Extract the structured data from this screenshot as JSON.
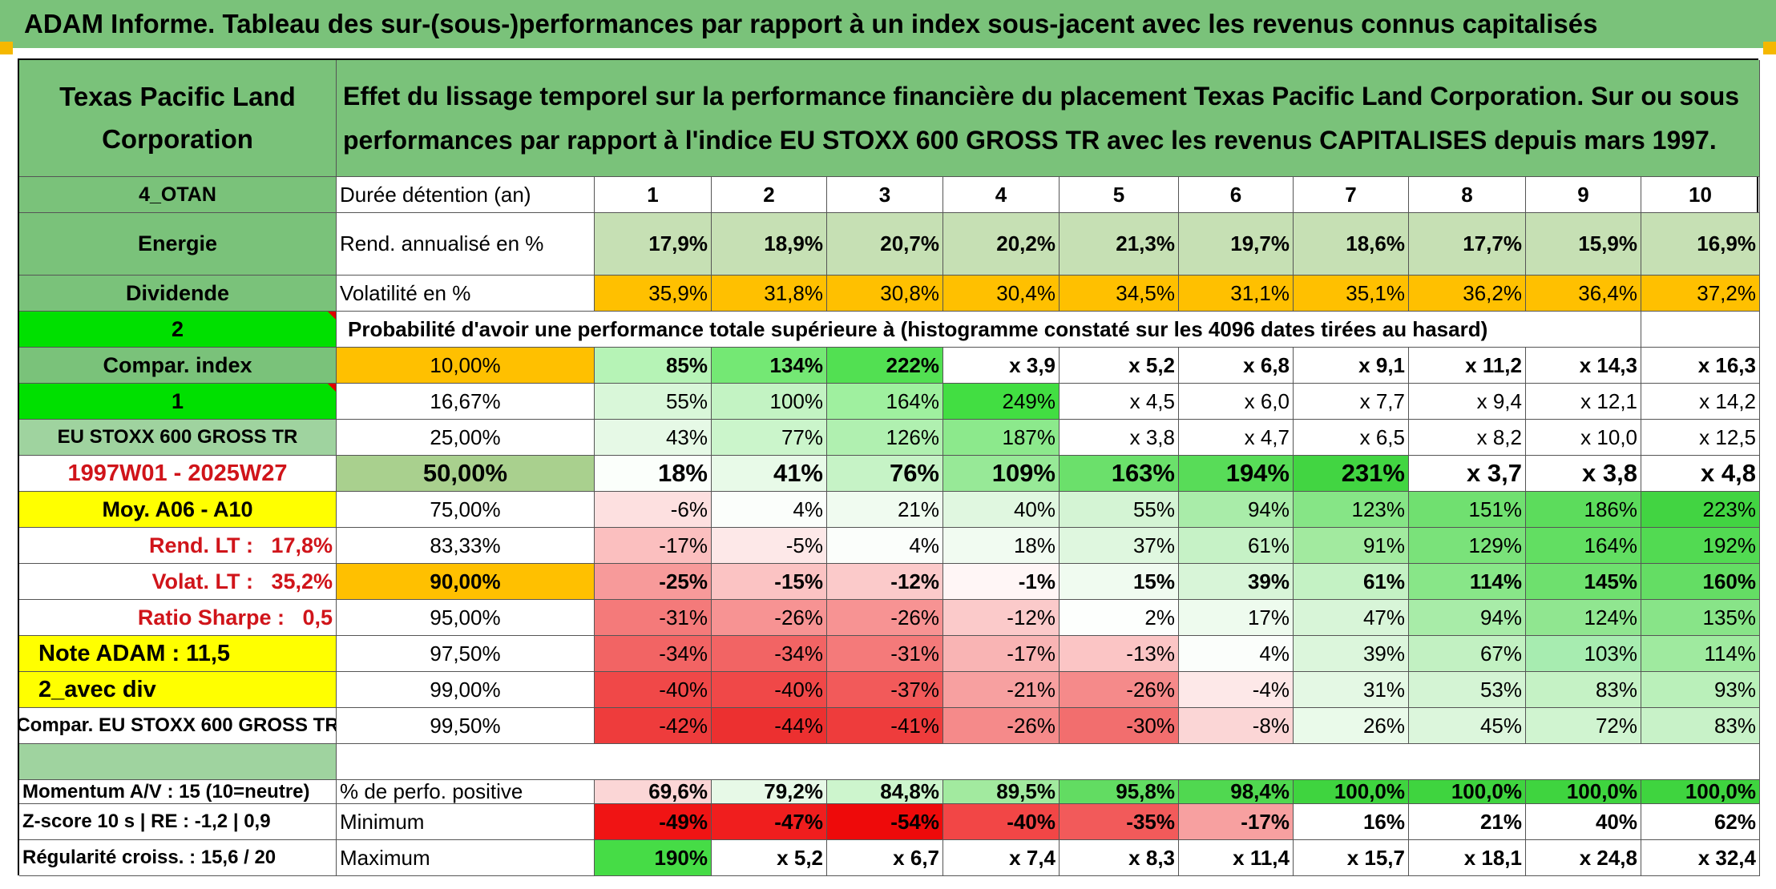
{
  "title": "ADAM Informe. Tableau des sur-(sous-)performances par rapport à un index sous-jacent avec les revenus connus capitalisés",
  "header": {
    "company": "Texas Pacific Land Corporation",
    "description": "Effet du lissage temporel sur la performance financière du placement Texas Pacific Land Corporation. Sur ou sous performances par rapport à l'indice EU STOXX 600 GROSS TR avec les revenus CAPITALISES depuis mars 1997."
  },
  "left_labels": [
    "4_OTAN",
    "Energie",
    "Dividende",
    "2",
    "Compar. index",
    "1",
    "EU STOXX 600 GROSS TR",
    "1997W01 - 2025W27",
    "Moy. A06 - A10",
    "Rend. LT :   17,8%",
    "Volat. LT :   35,2%",
    "Ratio Sharpe :   0,5",
    "Note ADAM : 11,5",
    "2_avec div",
    "Compar. EU STOXX 600 GROSS TR",
    ""
  ],
  "bottom_left": [
    "Momentum A/V : 15 (10=neutre)",
    "Z-score 10 s | RE : -1,2 | 0,9",
    "Régularité croiss. : 15,6 / 20"
  ],
  "row_labels": {
    "duration": "Durée détention (an)",
    "return": "Rend. annualisé en %",
    "volatility": "Volatilité en %",
    "probability": "Probabilité d'avoir une performance totale supérieure à (histogramme constaté sur les 4096 dates tirées au hasard)",
    "positive": "% de perfo. positive",
    "minimum": "Minimum",
    "maximum": "Maximum"
  },
  "years": [
    "1",
    "2",
    "3",
    "4",
    "5",
    "6",
    "7",
    "8",
    "9",
    "10"
  ],
  "returns": [
    "17,9%",
    "18,9%",
    "20,7%",
    "20,2%",
    "21,3%",
    "19,7%",
    "18,6%",
    "17,7%",
    "15,9%",
    "16,9%"
  ],
  "volatility": [
    "35,9%",
    "31,8%",
    "30,8%",
    "30,4%",
    "34,5%",
    "31,1%",
    "35,1%",
    "36,2%",
    "36,4%",
    "37,2%"
  ],
  "quantiles": [
    {
      "level": "10,00%",
      "values": [
        "85%",
        "134%",
        "222%",
        "x 3,9",
        "x 5,2",
        "x 6,8",
        "x 9,1",
        "x 11,2",
        "x 14,3",
        "x 16,3"
      ]
    },
    {
      "level": "16,67%",
      "values": [
        "55%",
        "100%",
        "164%",
        "249%",
        "x 4,5",
        "x 6,0",
        "x 7,7",
        "x 9,4",
        "x 12,1",
        "x 14,2"
      ]
    },
    {
      "level": "25,00%",
      "values": [
        "43%",
        "77%",
        "126%",
        "187%",
        "x 3,8",
        "x 4,7",
        "x 6,5",
        "x 8,2",
        "x 10,0",
        "x 12,5"
      ]
    },
    {
      "level": "50,00%",
      "values": [
        "18%",
        "41%",
        "76%",
        "109%",
        "163%",
        "194%",
        "231%",
        "x 3,7",
        "x 3,8",
        "x 4,8"
      ]
    },
    {
      "level": "75,00%",
      "values": [
        "-6%",
        "4%",
        "21%",
        "40%",
        "55%",
        "94%",
        "123%",
        "151%",
        "186%",
        "223%"
      ]
    },
    {
      "level": "83,33%",
      "values": [
        "-17%",
        "-5%",
        "4%",
        "18%",
        "37%",
        "61%",
        "91%",
        "129%",
        "164%",
        "192%"
      ]
    },
    {
      "level": "90,00%",
      "values": [
        "-25%",
        "-15%",
        "-12%",
        "-1%",
        "15%",
        "39%",
        "61%",
        "114%",
        "145%",
        "160%"
      ]
    },
    {
      "level": "95,00%",
      "values": [
        "-31%",
        "-26%",
        "-26%",
        "-12%",
        "2%",
        "17%",
        "47%",
        "94%",
        "124%",
        "135%"
      ]
    },
    {
      "level": "97,50%",
      "values": [
        "-34%",
        "-34%",
        "-31%",
        "-17%",
        "-13%",
        "4%",
        "39%",
        "67%",
        "103%",
        "114%"
      ]
    },
    {
      "level": "99,00%",
      "values": [
        "-40%",
        "-40%",
        "-37%",
        "-21%",
        "-26%",
        "-4%",
        "31%",
        "53%",
        "83%",
        "93%"
      ]
    },
    {
      "level": "99,50%",
      "values": [
        "-42%",
        "-44%",
        "-41%",
        "-26%",
        "-30%",
        "-8%",
        "26%",
        "45%",
        "72%",
        "83%"
      ]
    }
  ],
  "positive": [
    "69,6%",
    "79,2%",
    "84,8%",
    "89,5%",
    "95,8%",
    "98,4%",
    "100,0%",
    "100,0%",
    "100,0%",
    "100,0%"
  ],
  "minimum": [
    "-49%",
    "-47%",
    "-54%",
    "-40%",
    "-35%",
    "-17%",
    "16%",
    "21%",
    "40%",
    "62%"
  ],
  "maximum": [
    "190%",
    "x 5,2",
    "x 6,7",
    "x 7,4",
    "x 8,3",
    "x 11,4",
    "x 15,7",
    "x 18,1",
    "x 24,8",
    "x 32,4"
  ],
  "quantile_colors": [
    [
      "#b6f3b6",
      "#74e874",
      "#52e052",
      "#ffffff",
      "#ffffff",
      "#ffffff",
      "#ffffff",
      "#ffffff",
      "#ffffff",
      "#ffffff"
    ],
    [
      "#d9f7d9",
      "#c3f3c3",
      "#9ff09f",
      "#42de42",
      "#ffffff",
      "#ffffff",
      "#ffffff",
      "#ffffff",
      "#ffffff",
      "#ffffff"
    ],
    [
      "#e6f9e6",
      "#cbf5cb",
      "#b0f0b0",
      "#8ce98c",
      "#ffffff",
      "#ffffff",
      "#ffffff",
      "#ffffff",
      "#ffffff",
      "#ffffff"
    ],
    [
      "#fbfffb",
      "#e8fae8",
      "#c6f3c6",
      "#97e997",
      "#6be06b",
      "#58dc58",
      "#42d542",
      "#ffffff",
      "#ffffff",
      "#ffffff"
    ],
    [
      "#fde0e0",
      "#fbfefb",
      "#f0fbf0",
      "#e0f7e0",
      "#d4f4d4",
      "#a9eca9",
      "#86e586",
      "#70e070",
      "#5cdc5c",
      "#42d442"
    ],
    [
      "#fbbfbf",
      "#fde8e8",
      "#fbfefb",
      "#f1fbf1",
      "#dff7df",
      "#c6f2c6",
      "#a2ea9f",
      "#7ae27a",
      "#62de62",
      "#52da52"
    ],
    [
      "#f79a9a",
      "#fbc3c3",
      "#fbcaca",
      "#fff6f6",
      "#f0fbf0",
      "#d8f5d8",
      "#c4f2c4",
      "#88e688",
      "#6ee06e",
      "#64dd64"
    ],
    [
      "#f47a7a",
      "#f79393",
      "#f79393",
      "#fbcaca",
      "#fdfffd",
      "#eefbee",
      "#d8f5d8",
      "#a8eca8",
      "#90e690",
      "#88e488"
    ],
    [
      "#f26464",
      "#f26464",
      "#f47a7a",
      "#f9b4b4",
      "#fbc5c5",
      "#fbfefb",
      "#dcf6dc",
      "#c2f1c2",
      "#a7ecb0",
      "#9fea9f"
    ],
    [
      "#f04848",
      "#f04848",
      "#f25a5a",
      "#f7a0a0",
      "#f58a8a",
      "#fde8e8",
      "#e4f8e4",
      "#d4f4d4",
      "#c5f2c5",
      "#baf0ba"
    ],
    [
      "#ee3c3c",
      "#ec3030",
      "#ee3c3c",
      "#f58a8a",
      "#f26e6e",
      "#fbd6d6",
      "#eafaea",
      "#dcf6dc",
      "#d0f4d0",
      "#c8f2c8"
    ]
  ],
  "positive_colors": [
    "#fbd6d6",
    "#e7f9e7",
    "#cdf5cd",
    "#a2ea9f",
    "#62dc62",
    "#50d850",
    "#3fd43f",
    "#3fd43f",
    "#3fd43f",
    "#3fd43f"
  ],
  "minimum_colors": [
    "#f01414",
    "#f01e1e",
    "#ee0a0a",
    "#f24646",
    "#f25a5a",
    "#f7a0a0",
    "#ffffff",
    "#ffffff",
    "#ffffff",
    "#ffffff"
  ],
  "maximum_colors": [
    "#46dc46",
    "#ffffff",
    "#ffffff",
    "#ffffff",
    "#ffffff",
    "#ffffff",
    "#ffffff",
    "#ffffff",
    "#ffffff",
    "#ffffff"
  ]
}
